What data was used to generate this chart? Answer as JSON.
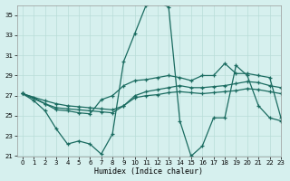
{
  "xlabel": "Humidex (Indice chaleur)",
  "xlim": [
    -0.5,
    23
  ],
  "ylim": [
    21,
    36
  ],
  "yticks": [
    21,
    23,
    25,
    27,
    29,
    31,
    33,
    35
  ],
  "xticks": [
    0,
    1,
    2,
    3,
    4,
    5,
    6,
    7,
    8,
    9,
    10,
    11,
    12,
    13,
    14,
    15,
    16,
    17,
    18,
    19,
    20,
    21,
    22,
    23
  ],
  "bg_color": "#d6f0ee",
  "grid_color": "#b8ddd8",
  "line_color": "#1a6b60",
  "lines": [
    {
      "x": [
        0,
        1,
        2,
        3,
        4,
        5,
        6,
        7,
        8,
        9,
        10,
        11,
        12,
        13,
        14,
        15,
        16,
        17,
        18,
        19,
        20,
        21,
        22,
        23
      ],
      "y": [
        27.2,
        26.5,
        25.5,
        23.7,
        22.2,
        22.5,
        22.2,
        21.2,
        23.2,
        30.4,
        33.2,
        36.0,
        36.3,
        35.8,
        24.5,
        21.0,
        22.0,
        24.8,
        24.8,
        30.0,
        29.0,
        26.0,
        24.8,
        24.5
      ]
    },
    {
      "x": [
        0,
        1,
        2,
        3,
        4,
        5,
        6,
        7,
        8,
        9,
        10,
        11,
        12,
        13,
        14,
        15,
        16,
        17,
        18,
        19,
        20,
        21,
        22,
        23
      ],
      "y": [
        27.2,
        26.8,
        26.2,
        25.6,
        25.5,
        25.3,
        25.2,
        26.6,
        27.0,
        28.0,
        28.5,
        28.6,
        28.8,
        29.0,
        28.8,
        28.5,
        29.0,
        29.0,
        30.2,
        29.2,
        29.2,
        29.0,
        28.8,
        24.8
      ]
    },
    {
      "x": [
        0,
        2,
        3,
        4,
        5,
        6,
        7,
        8,
        9,
        10,
        11,
        12,
        13,
        14,
        15,
        16,
        17,
        18,
        19,
        20,
        21,
        22,
        23
      ],
      "y": [
        27.2,
        26.2,
        25.8,
        25.7,
        25.6,
        25.5,
        25.4,
        25.3,
        26.0,
        27.0,
        27.4,
        27.6,
        27.8,
        28.0,
        27.8,
        27.8,
        27.9,
        28.0,
        28.2,
        28.4,
        28.3,
        28.0,
        27.8
      ]
    },
    {
      "x": [
        0,
        2,
        3,
        4,
        5,
        6,
        7,
        8,
        9,
        10,
        11,
        12,
        13,
        14,
        15,
        16,
        17,
        18,
        19,
        20,
        21,
        22,
        23
      ],
      "y": [
        27.2,
        26.5,
        26.2,
        26.0,
        25.9,
        25.8,
        25.7,
        25.6,
        26.0,
        26.8,
        27.0,
        27.1,
        27.3,
        27.4,
        27.3,
        27.2,
        27.3,
        27.4,
        27.5,
        27.7,
        27.6,
        27.4,
        27.2
      ]
    }
  ]
}
